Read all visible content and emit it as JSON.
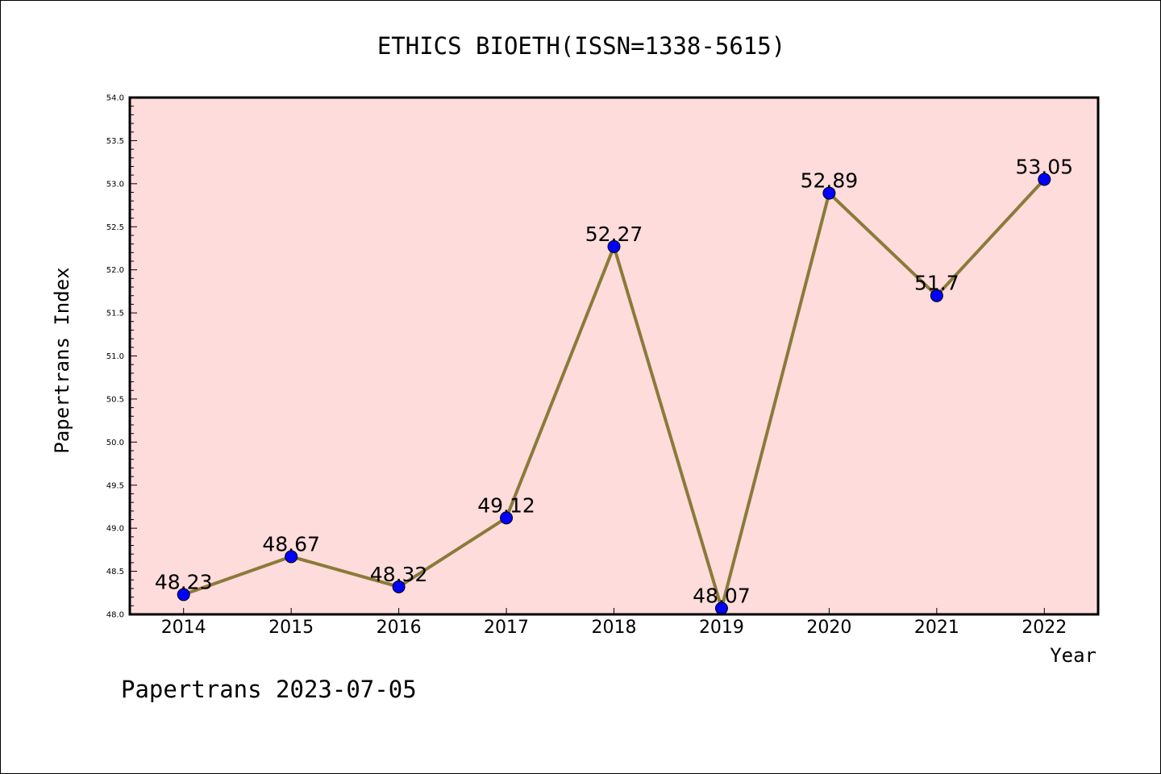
{
  "chart_data": {
    "type": "line",
    "title": "ETHICS BIOETH(ISSN=1338-5615)",
    "xlabel": "Year",
    "ylabel": "Papertrans Index",
    "categories": [
      "2014",
      "2015",
      "2016",
      "2017",
      "2018",
      "2019",
      "2020",
      "2021",
      "2022"
    ],
    "values": [
      48.23,
      48.67,
      48.32,
      49.12,
      52.27,
      48.07,
      52.89,
      51.7,
      53.05
    ],
    "data_labels": [
      "48.23",
      "48.67",
      "48.32",
      "49.12",
      "52.27",
      "48.07",
      "52.89",
      "51.7",
      "53.05"
    ],
    "ylim": [
      48.0,
      54.0
    ],
    "yticks": [
      "48.0",
      "48.5",
      "49.0",
      "49.5",
      "50.0",
      "50.5",
      "51.0",
      "51.5",
      "52.0",
      "52.5",
      "53.0",
      "53.5",
      "54.0"
    ],
    "grid": false,
    "line_color": "#8b7a3a",
    "marker_color": "#0000ff",
    "plot_background": "#fddcdb"
  },
  "footer": "Papertrans 2023-07-05"
}
